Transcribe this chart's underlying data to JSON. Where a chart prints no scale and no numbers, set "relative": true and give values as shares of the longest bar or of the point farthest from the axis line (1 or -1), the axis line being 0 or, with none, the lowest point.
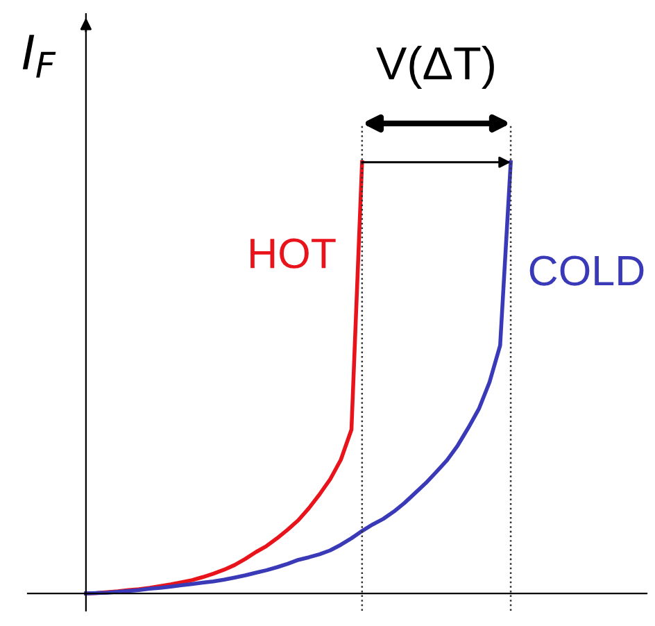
{
  "chart_data": {
    "type": "line",
    "relative": true,
    "ylabel": "I$_{F}$",
    "annotations": [
      {
        "text": "V(ΔT)"
      }
    ],
    "categories": [
      null,
      null,
      null,
      null,
      null,
      null,
      null,
      null,
      null,
      null,
      null,
      null,
      null,
      null,
      null,
      null,
      null,
      null,
      null,
      null,
      null,
      null,
      null,
      null,
      null,
      null,
      null,
      null,
      null,
      null,
      null,
      null,
      null,
      null,
      null,
      null,
      null,
      null,
      null,
      null,
      null
    ],
    "series": [
      {
        "name": "HOT",
        "color": "#e8131b",
        "values": [
          0,
          0.001,
          0.003,
          0.005,
          0.008,
          0.01,
          0.013,
          0.017,
          0.021,
          0.026,
          0.031,
          0.038,
          0.046,
          0.055,
          0.066,
          0.08,
          0.096,
          0.11,
          0.128,
          0.148,
          0.17,
          0.198,
          0.23,
          0.265,
          0.31,
          0.38,
          1.0,
          null,
          null,
          null,
          null,
          null,
          null,
          null,
          null,
          null,
          null,
          null,
          null,
          null,
          null
        ]
      },
      {
        "name": "COLD",
        "color": "#3a3ab8",
        "values": [
          0,
          0.001,
          0.002,
          0.004,
          0.006,
          0.008,
          0.011,
          0.013,
          0.016,
          0.019,
          0.022,
          0.025,
          0.028,
          0.032,
          0.037,
          0.042,
          0.048,
          0.054,
          0.061,
          0.069,
          0.078,
          0.084,
          0.091,
          0.1,
          0.113,
          0.128,
          0.145,
          0.16,
          0.173,
          0.19,
          0.21,
          0.233,
          0.256,
          0.282,
          0.309,
          0.343,
          0.384,
          0.428,
          0.49,
          0.575,
          1.0
        ]
      }
    ]
  }
}
